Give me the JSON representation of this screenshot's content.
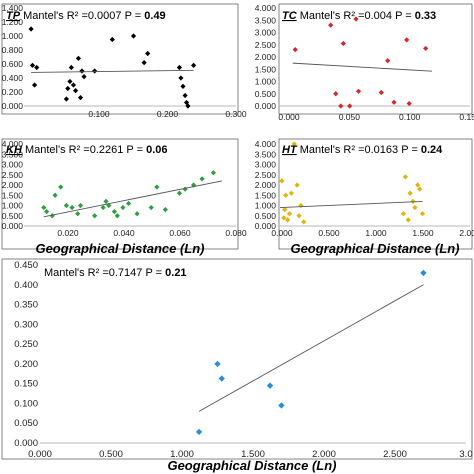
{
  "chart_data": [
    {
      "type": "scatter",
      "label": "TP",
      "stat_prefix": " Mantel's R² =0.0007 P = ",
      "p_value": "0.49",
      "color": "#000000",
      "marker": "diamond",
      "xlim": [
        0,
        0.3
      ],
      "ylim": [
        0,
        1.4
      ],
      "xticks": [
        "0.100",
        "0.200",
        "0.300"
      ],
      "yticks": [
        "0.000",
        "0.200",
        "0.400",
        "0.600",
        "0.800",
        "1.000",
        "1.200",
        "1.400"
      ],
      "xlabel": "",
      "x": [
        0.01,
        0.012,
        0.015,
        0.018,
        0.06,
        0.062,
        0.065,
        0.067,
        0.07,
        0.073,
        0.077,
        0.08,
        0.082,
        0.085,
        0.1,
        0.125,
        0.155,
        0.17,
        0.175,
        0.22,
        0.222,
        0.225,
        0.228,
        0.23,
        0.232,
        0.24
      ],
      "y": [
        1.1,
        0.58,
        0.3,
        0.55,
        0.1,
        0.25,
        0.35,
        0.55,
        0.3,
        0.22,
        0.68,
        0.12,
        0.5,
        0.42,
        0.5,
        0.95,
        1.0,
        0.62,
        0.75,
        0.55,
        0.4,
        0.28,
        0.15,
        0.05,
        0.0,
        0.58
      ],
      "trend": [
        [
          0.01,
          0.48
        ],
        [
          0.24,
          0.51
        ]
      ]
    },
    {
      "type": "scatter",
      "label": "TC",
      "stat_prefix": " Mantel's R² =0.004 P = ",
      "p_value": "0.33",
      "color": "#d62728",
      "marker": "diamond",
      "xlim": [
        0,
        0.15
      ],
      "ylim": [
        0,
        4
      ],
      "xticks": [
        "0.000",
        "0.050",
        "0.100",
        "0.150"
      ],
      "yticks": [
        "0.000",
        "0.500",
        "1.000",
        "1.500",
        "2.000",
        "2.500",
        "3.000",
        "3.500",
        "4.000"
      ],
      "xlabel": "",
      "x": [
        0.012,
        0.04,
        0.044,
        0.048,
        0.05,
        0.055,
        0.06,
        0.062,
        0.08,
        0.085,
        0.09,
        0.1,
        0.102,
        0.115
      ],
      "y": [
        2.3,
        3.3,
        0.5,
        0.0,
        2.55,
        0.0,
        3.55,
        0.6,
        0.55,
        1.85,
        0.15,
        2.7,
        0.1,
        2.35
      ],
      "trend": [
        [
          0.01,
          1.75
        ],
        [
          0.12,
          1.42
        ]
      ]
    },
    {
      "type": "scatter",
      "label": "KH",
      "stat_prefix": " Mantel's R² =0.2261 P = ",
      "p_value": "0.06",
      "color": "#2e9e3e",
      "marker": "diamond",
      "xlim": [
        0.005,
        0.08
      ],
      "ylim": [
        0,
        4
      ],
      "xticks": [
        "0.020",
        "0.040",
        "0.060",
        "0.080"
      ],
      "yticks": [
        "0.000",
        "0.500",
        "1.000",
        "1.500",
        "2.000",
        "2.500",
        "3.000",
        "3.500",
        "4.000"
      ],
      "xlabel": "Geographical Distance (Ln)",
      "x": [
        0.012,
        0.013,
        0.015,
        0.016,
        0.018,
        0.02,
        0.022,
        0.024,
        0.025,
        0.03,
        0.033,
        0.034,
        0.035,
        0.037,
        0.038,
        0.04,
        0.042,
        0.045,
        0.05,
        0.052,
        0.055,
        0.06,
        0.062,
        0.065,
        0.068,
        0.072
      ],
      "y": [
        0.9,
        0.7,
        0.5,
        1.5,
        1.9,
        1.0,
        0.9,
        0.6,
        1.0,
        0.5,
        0.9,
        1.2,
        1.0,
        0.7,
        0.5,
        0.9,
        1.1,
        0.6,
        0.9,
        1.9,
        0.8,
        1.6,
        1.8,
        2.0,
        2.3,
        2.6
      ],
      "trend": [
        [
          0.012,
          0.45
        ],
        [
          0.075,
          2.2
        ]
      ]
    },
    {
      "type": "scatter",
      "label": "HT",
      "stat_prefix": " Mantel's R² =0.0163 P = ",
      "p_value": "0.24",
      "color": "#e3b400",
      "marker": "diamond",
      "xlim": [
        0,
        2
      ],
      "ylim": [
        0,
        4
      ],
      "xticks": [
        "0.000",
        "0.500",
        "1.000",
        "1.500",
        "2.000"
      ],
      "yticks": [
        "0.000",
        "0.500",
        "1.000",
        "1.500",
        "2.000",
        "2.500",
        "3.000",
        "3.500",
        "4.000"
      ],
      "xlabel": "Geographical Distance (Ln)",
      "x": [
        0.02,
        0.04,
        0.05,
        0.06,
        0.08,
        0.1,
        0.12,
        0.15,
        0.18,
        0.2,
        0.22,
        0.25,
        1.3,
        1.32,
        1.35,
        1.37,
        1.4,
        1.42,
        1.45,
        1.47,
        1.5
      ],
      "y": [
        2.2,
        0.4,
        0.8,
        1.5,
        0.3,
        0.6,
        1.6,
        4.0,
        2.0,
        0.5,
        1.0,
        0.2,
        0.6,
        2.4,
        0.3,
        1.6,
        1.2,
        0.9,
        2.0,
        1.8,
        0.6
      ],
      "trend": [
        [
          0.0,
          0.9
        ],
        [
          1.5,
          1.2
        ]
      ]
    },
    {
      "type": "scatter",
      "label": "",
      "stat_prefix": "Mantel's R² =0.7147 P = ",
      "p_value": "0.21",
      "color": "#2a8fd6",
      "marker": "diamond",
      "xlim": [
        0,
        3
      ],
      "ylim": [
        0,
        0.45
      ],
      "xticks": [
        "0.000",
        "0.500",
        "1.000",
        "1.500",
        "2.000",
        "2.500",
        "3.0"
      ],
      "yticks": [
        "0.000",
        "0.050",
        "0.100",
        "0.150",
        "0.200",
        "0.250",
        "0.300",
        "0.350",
        "0.400",
        "0.450"
      ],
      "xlabel": "Geographical Distance (Ln)",
      "x": [
        1.12,
        1.25,
        1.28,
        1.62,
        1.7,
        2.7
      ],
      "y": [
        0.028,
        0.2,
        0.163,
        0.145,
        0.095,
        0.43
      ],
      "trend": [
        [
          1.12,
          0.08
        ],
        [
          2.7,
          0.4
        ]
      ]
    }
  ]
}
